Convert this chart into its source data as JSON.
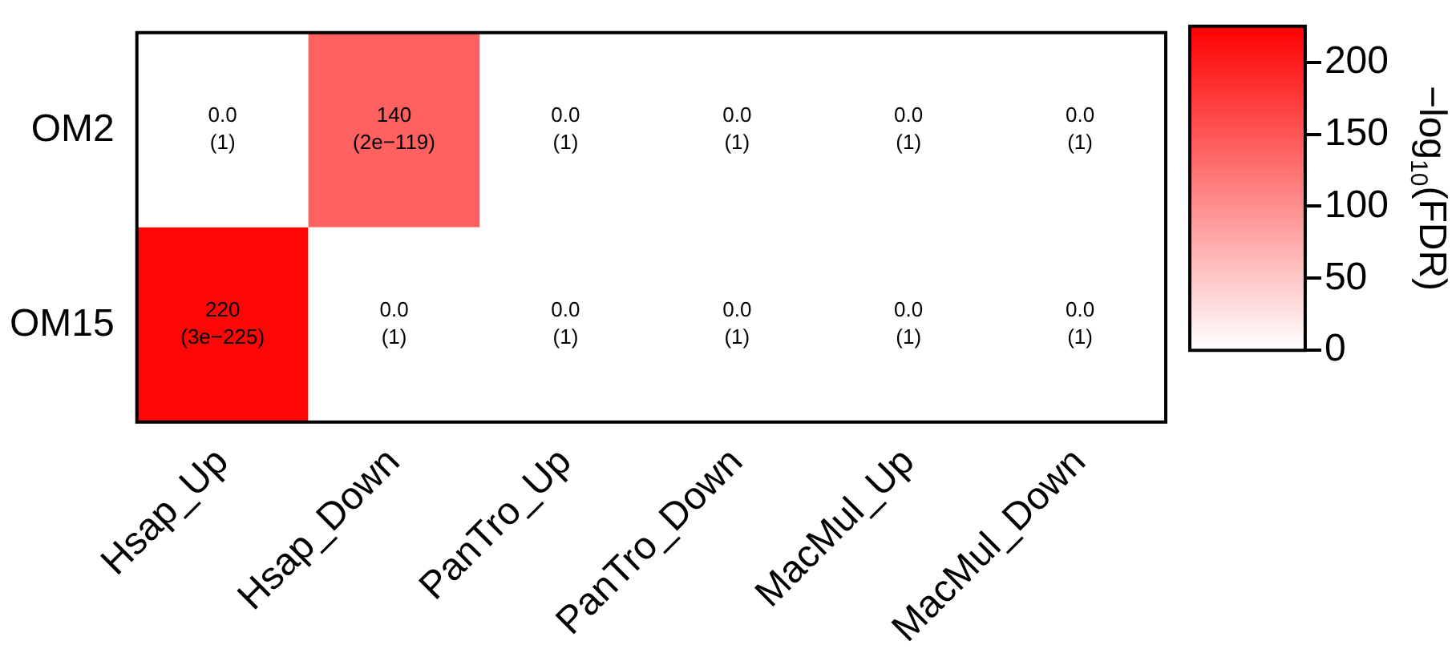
{
  "chart_data": {
    "type": "heatmap",
    "categories": [
      "Hsap_Up",
      "Hsap_Down",
      "PanTro_Up",
      "PanTro_Down",
      "MacMul_Up",
      "MacMul_Down"
    ],
    "y_categories": [
      "OM2",
      "OM15"
    ],
    "cells": [
      [
        0.0,
        140,
        0.0,
        0.0,
        0.0,
        0.0
      ],
      [
        220,
        0.0,
        0.0,
        0.0,
        0.0,
        0.0
      ]
    ],
    "cell_labels": [
      [
        "0.0\n(1)",
        "140\n(2e−119)",
        "0.0\n(1)",
        "0.0\n(1)",
        "0.0\n(1)",
        "0.0\n(1)"
      ],
      [
        "220\n(3e−225)",
        "0.0\n(1)",
        "0.0\n(1)",
        "0.0\n(1)",
        "0.0\n(1)",
        "0.0\n(1)"
      ]
    ],
    "clim": [
      0,
      225
    ],
    "cticks": [
      0,
      50,
      100,
      150,
      200
    ],
    "clabel": "−log$_{10}$(FDR)"
  }
}
